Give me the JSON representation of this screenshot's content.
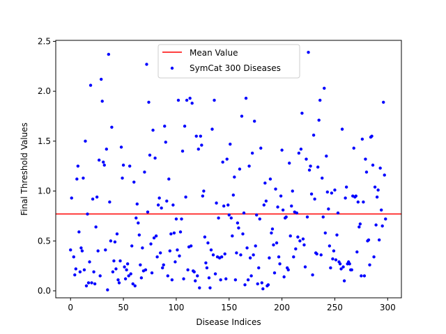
{
  "chart_data": {
    "type": "scatter",
    "xlabel": "Disease Indices",
    "ylabel": "Final Threshold Values",
    "xlim": [
      -14,
      313
    ],
    "ylim": [
      -0.07,
      2.51
    ],
    "xticks": [
      "0",
      "50",
      "100",
      "150",
      "200",
      "250",
      "300"
    ],
    "yticks": [
      "0.0",
      "0.5",
      "1.0",
      "1.5",
      "2.0",
      "2.5"
    ],
    "grid": false,
    "legend_position": "top-center",
    "mean_line": {
      "label": "Mean Value",
      "value": 0.77,
      "color": "#ff0000"
    },
    "series": [
      {
        "name": "SymCat 300 Diseases",
        "color": "#0000ff",
        "points": [
          [
            0,
            0.41
          ],
          [
            1,
            0.93
          ],
          [
            3,
            0.34
          ],
          [
            4,
            0.16
          ],
          [
            5,
            0.22
          ],
          [
            6,
            1.12
          ],
          [
            7,
            1.25
          ],
          [
            8,
            0.59
          ],
          [
            9,
            0.19
          ],
          [
            10,
            0.43
          ],
          [
            11,
            0.4
          ],
          [
            12,
            1.13
          ],
          [
            13,
            0.21
          ],
          [
            14,
            1.5
          ],
          [
            15,
            0.05
          ],
          [
            16,
            0.77
          ],
          [
            17,
            0.08
          ],
          [
            18,
            0.29
          ],
          [
            19,
            2.06
          ],
          [
            20,
            0.08
          ],
          [
            21,
            0.92
          ],
          [
            22,
            0.19
          ],
          [
            23,
            0.07
          ],
          [
            24,
            0.64
          ],
          [
            25,
            0.94
          ],
          [
            26,
            0.4
          ],
          [
            27,
            1.31
          ],
          [
            28,
            0.15
          ],
          [
            29,
            2.12
          ],
          [
            30,
            1.9
          ],
          [
            31,
            1.29
          ],
          [
            32,
            1.26
          ],
          [
            33,
            0.41
          ],
          [
            34,
            1.42
          ],
          [
            35,
            0.01
          ],
          [
            36,
            2.37
          ],
          [
            37,
            0.89
          ],
          [
            38,
            0.5
          ],
          [
            39,
            1.64
          ],
          [
            40,
            0.19
          ],
          [
            41,
            0.3
          ],
          [
            42,
            0.49
          ],
          [
            43,
            0.22
          ],
          [
            44,
            0.57
          ],
          [
            45,
            0.11
          ],
          [
            46,
            0.08
          ],
          [
            47,
            0.3
          ],
          [
            48,
            1.44
          ],
          [
            49,
            1.13
          ],
          [
            50,
            1.26
          ],
          [
            51,
            0.24
          ],
          [
            52,
            0.12
          ],
          [
            53,
            0.21
          ],
          [
            54,
            0.27
          ],
          [
            55,
            0.15
          ],
          [
            56,
            1.25
          ],
          [
            57,
            0.17
          ],
          [
            58,
            0.45
          ],
          [
            59,
            0.07
          ],
          [
            60,
            1.09
          ],
          [
            61,
            0.05
          ],
          [
            62,
            0.73
          ],
          [
            63,
            0.87
          ],
          [
            64,
            0.68
          ],
          [
            65,
            0.56
          ],
          [
            66,
            0.26
          ],
          [
            67,
            0.13
          ],
          [
            68,
            0.43
          ],
          [
            69,
            0.2
          ],
          [
            70,
            1.19
          ],
          [
            71,
            0.21
          ],
          [
            72,
            2.27
          ],
          [
            73,
            0.79
          ],
          [
            74,
            1.89
          ],
          [
            75,
            1.36
          ],
          [
            76,
            0.47
          ],
          [
            77,
            0.18
          ],
          [
            78,
            1.61
          ],
          [
            79,
            0.53
          ],
          [
            80,
            1.33
          ],
          [
            81,
            0.55
          ],
          [
            82,
            0.34
          ],
          [
            83,
            0.86
          ],
          [
            84,
            0.93
          ],
          [
            85,
            0.38
          ],
          [
            86,
            0.83
          ],
          [
            87,
            0.23
          ],
          [
            88,
            0.26
          ],
          [
            89,
            1.65
          ],
          [
            90,
            1.49
          ],
          [
            91,
            0.9
          ],
          [
            92,
            0.15
          ],
          [
            93,
            1.12
          ],
          [
            94,
            0.4
          ],
          [
            95,
            0.57
          ],
          [
            96,
            0.11
          ],
          [
            97,
            0.86
          ],
          [
            98,
            0.58
          ],
          [
            99,
            0.29
          ],
          [
            100,
            0.72
          ],
          [
            101,
            0.41
          ],
          [
            102,
            1.91
          ],
          [
            103,
            0.35
          ],
          [
            104,
            0.59
          ],
          [
            105,
            0.72
          ],
          [
            106,
            1.4
          ],
          [
            107,
            0.12
          ],
          [
            108,
            1.65
          ],
          [
            109,
            0.94
          ],
          [
            110,
            1.91
          ],
          [
            111,
            0.21
          ],
          [
            112,
            0.44
          ],
          [
            113,
            1.93
          ],
          [
            114,
            0.45
          ],
          [
            115,
            1.88
          ],
          [
            116,
            0.2
          ],
          [
            117,
            0.19
          ],
          [
            118,
            0.1
          ],
          [
            119,
            1.55
          ],
          [
            120,
            0.15
          ],
          [
            121,
            1.42
          ],
          [
            122,
            0.03
          ],
          [
            123,
            1.55
          ],
          [
            124,
            1.46
          ],
          [
            125,
            0.95
          ],
          [
            126,
            1.0
          ],
          [
            127,
            0.54
          ],
          [
            128,
            0.28
          ],
          [
            129,
            0.23
          ],
          [
            130,
            0.48
          ],
          [
            131,
            0.13
          ],
          [
            132,
            0.03
          ],
          [
            133,
            0.41
          ],
          [
            134,
            1.62
          ],
          [
            135,
            0.36
          ],
          [
            136,
            1.91
          ],
          [
            137,
            0.17
          ],
          [
            138,
            0.88
          ],
          [
            139,
            0.34
          ],
          [
            140,
            0.73
          ],
          [
            141,
            0.33
          ],
          [
            142,
            0.11
          ],
          [
            143,
            0.34
          ],
          [
            144,
            1.29
          ],
          [
            145,
            0.85
          ],
          [
            146,
            0.37
          ],
          [
            147,
            0.12
          ],
          [
            148,
            1.32
          ],
          [
            149,
            0.86
          ],
          [
            150,
            0.76
          ],
          [
            151,
            1.47
          ],
          [
            152,
            0.73
          ],
          [
            153,
            0.55
          ],
          [
            154,
            0.96
          ],
          [
            155,
            1.14
          ],
          [
            156,
            0.11
          ],
          [
            157,
            0.38
          ],
          [
            158,
            0.68
          ],
          [
            159,
            0.63
          ],
          [
            160,
            1.22
          ],
          [
            161,
            0.36
          ],
          [
            162,
            1.75
          ],
          [
            163,
            0.57
          ],
          [
            164,
            0.78
          ],
          [
            165,
            0.06
          ],
          [
            166,
            1.93
          ],
          [
            167,
            0.43
          ],
          [
            168,
            0.11
          ],
          [
            169,
            1.25
          ],
          [
            170,
            0.33
          ],
          [
            171,
            0.15
          ],
          [
            172,
            1.38
          ],
          [
            173,
            0.36
          ],
          [
            174,
            1.7
          ],
          [
            175,
            0.45
          ],
          [
            176,
            0.76
          ],
          [
            177,
            0.07
          ],
          [
            178,
            0.23
          ],
          [
            179,
            0.72
          ],
          [
            180,
            1.43
          ],
          [
            181,
            0.08
          ],
          [
            182,
            0.02
          ],
          [
            183,
            0.86
          ],
          [
            184,
            1.08
          ],
          [
            185,
            0.9
          ],
          [
            186,
            0.05
          ],
          [
            187,
            0.06
          ],
          [
            188,
            0.33
          ],
          [
            189,
            1.12
          ],
          [
            190,
            0.58
          ],
          [
            191,
            0.62
          ],
          [
            192,
            0.46
          ],
          [
            193,
            0.18
          ],
          [
            194,
            1.02
          ],
          [
            195,
            0.48
          ],
          [
            196,
            0.84
          ],
          [
            197,
            0.34
          ],
          [
            198,
            0.27
          ],
          [
            199,
            0.95
          ],
          [
            200,
            1.41
          ],
          [
            201,
            0.81
          ],
          [
            202,
            0.14
          ],
          [
            203,
            0.73
          ],
          [
            204,
            0.74
          ],
          [
            205,
            0.23
          ],
          [
            206,
            0.21
          ],
          [
            207,
            1.28
          ],
          [
            208,
            0.55
          ],
          [
            209,
            0.85
          ],
          [
            210,
            1.0
          ],
          [
            211,
            0.34
          ],
          [
            212,
            0.79
          ],
          [
            213,
            0.42
          ],
          [
            214,
            0.78
          ],
          [
            215,
            0.54
          ],
          [
            216,
            1.38
          ],
          [
            217,
            0.5
          ],
          [
            218,
            1.42
          ],
          [
            219,
            1.78
          ],
          [
            220,
            0.52
          ],
          [
            221,
            0.46
          ],
          [
            222,
            0.24
          ],
          [
            223,
            1.32
          ],
          [
            224,
            0.74
          ],
          [
            225,
            2.39
          ],
          [
            226,
            1.21
          ],
          [
            227,
            1.25
          ],
          [
            228,
            0.97
          ],
          [
            229,
            0.16
          ],
          [
            230,
            1.56
          ],
          [
            231,
            0.92
          ],
          [
            232,
            0.38
          ],
          [
            233,
            0.37
          ],
          [
            234,
            1.24
          ],
          [
            235,
            1.71
          ],
          [
            236,
            1.91
          ],
          [
            237,
            0.36
          ],
          [
            238,
            1.13
          ],
          [
            239,
            0.74
          ],
          [
            240,
            2.03
          ],
          [
            241,
            0.58
          ],
          [
            242,
            1.35
          ],
          [
            243,
            0.99
          ],
          [
            244,
            0.82
          ],
          [
            245,
            0.45
          ],
          [
            246,
            0.23
          ],
          [
            247,
            0.98
          ],
          [
            248,
            0.32
          ],
          [
            249,
            0.4
          ],
          [
            250,
            1.01
          ],
          [
            251,
            0.31
          ],
          [
            252,
            0.56
          ],
          [
            253,
            0.78
          ],
          [
            254,
            0.29
          ],
          [
            255,
            0.27
          ],
          [
            256,
            0.22
          ],
          [
            257,
            1.62
          ],
          [
            258,
            0.24
          ],
          [
            259,
            0.1
          ],
          [
            260,
            0.93
          ],
          [
            261,
            1.04
          ],
          [
            262,
            0.27
          ],
          [
            263,
            0.29
          ],
          [
            264,
            0.27
          ],
          [
            265,
            0.21
          ],
          [
            266,
            0.21
          ],
          [
            267,
            0.95
          ],
          [
            268,
            1.43
          ],
          [
            269,
            0.94
          ],
          [
            270,
            0.95
          ],
          [
            271,
            0.39
          ],
          [
            272,
            0.89
          ],
          [
            273,
            0.64
          ],
          [
            274,
            0.67
          ],
          [
            275,
            0.15
          ],
          [
            276,
            1.52
          ],
          [
            277,
            0.89
          ],
          [
            278,
            0.15
          ],
          [
            279,
            1.32
          ],
          [
            280,
            1.19
          ],
          [
            281,
            0.5
          ],
          [
            282,
            0.51
          ],
          [
            283,
            0.26
          ],
          [
            284,
            1.54
          ],
          [
            285,
            1.55
          ],
          [
            286,
            1.26
          ],
          [
            287,
            0.34
          ],
          [
            288,
            1.04
          ],
          [
            289,
            0.66
          ],
          [
            290,
            0.94
          ],
          [
            291,
            1.01
          ],
          [
            292,
            0.51
          ],
          [
            293,
            1.23
          ],
          [
            294,
            0.81
          ],
          [
            295,
            0.65
          ],
          [
            296,
            1.89
          ],
          [
            297,
            1.16
          ],
          [
            298,
            0.72
          ]
        ]
      }
    ]
  }
}
